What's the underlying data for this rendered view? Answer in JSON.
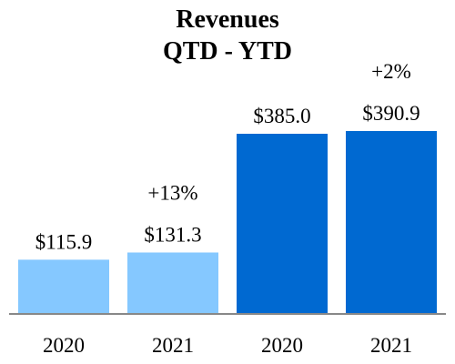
{
  "chart_data": {
    "type": "bar",
    "title": [
      "Revenues",
      "QTD - YTD"
    ],
    "categories": [
      "2020",
      "2021",
      "2020",
      "2021"
    ],
    "values": [
      115.9,
      131.3,
      385.0,
      390.9
    ],
    "data_labels": [
      "$115.9",
      "$131.3",
      "$385.0",
      "$390.9"
    ],
    "change_labels": [
      "",
      "+13%",
      "",
      "+2%"
    ],
    "bar_colors": [
      "#85C8FF",
      "#85C8FF",
      "#0069D1",
      "#0069D1"
    ],
    "axis_color": "#888888",
    "ylim": [
      0,
      400
    ],
    "grid": false,
    "legend": "none"
  }
}
